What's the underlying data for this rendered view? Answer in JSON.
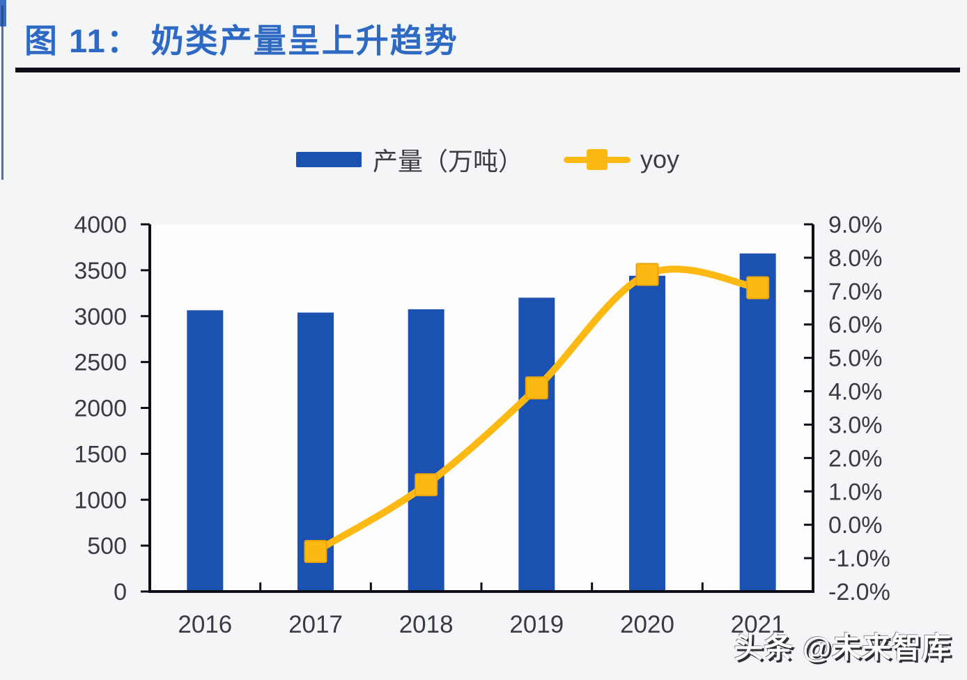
{
  "page": {
    "background": "#f3f5f7",
    "plot_background": "#fdfdfe"
  },
  "header": {
    "title": "图 11： 奶类产量呈上升趋势",
    "accent_color": "#2e6ac4"
  },
  "legend": {
    "items": [
      {
        "label": "产量（万吨）",
        "swatch": "bar",
        "color": "#1B52B1"
      },
      {
        "label": "yoy",
        "swatch": "line-marker",
        "color": "#FDB913"
      }
    ]
  },
  "watermark": {
    "text": "头条 @未来智库"
  },
  "chart_data": {
    "type": "bar",
    "subtype": "combo-bar-line",
    "title": "奶类产量呈上升趋势",
    "categories": [
      "2016",
      "2017",
      "2018",
      "2019",
      "2020",
      "2021"
    ],
    "series": [
      {
        "name": "产量（万吨）",
        "type": "bar",
        "axis": "left",
        "color": "#1B52B1",
        "values": [
          3064,
          3039,
          3075,
          3201,
          3440,
          3683
        ]
      },
      {
        "name": "yoy",
        "type": "line",
        "axis": "right",
        "color": "#FDB913",
        "marker": "square",
        "marker_edge_color": "#E9A50B",
        "values": [
          null,
          -0.8,
          1.2,
          4.1,
          7.5,
          7.1
        ]
      }
    ],
    "y_left": {
      "min": 0,
      "max": 4000,
      "step": 500,
      "decimals": 0,
      "suffix": ""
    },
    "y_right": {
      "min": -2,
      "max": 9,
      "step": 1,
      "decimals": 1,
      "suffix": "%"
    },
    "axis_text_color": "#3a3a46",
    "axis_line_color": "#0e0e16",
    "grid": false,
    "legend_position": "top"
  }
}
